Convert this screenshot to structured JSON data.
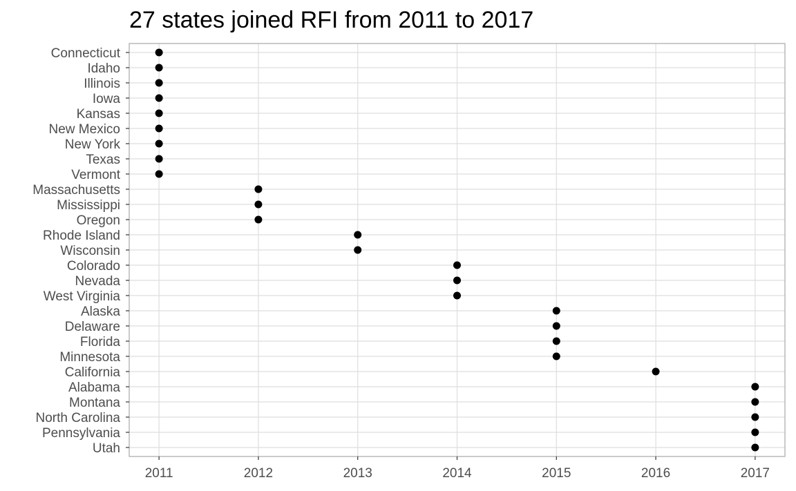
{
  "chart_data": {
    "type": "scatter",
    "title": "27 states joined RFI from 2011 to 2017",
    "xlabel": "",
    "ylabel": "",
    "x_ticks": [
      2011,
      2012,
      2013,
      2014,
      2015,
      2016,
      2017
    ],
    "xlim": [
      2010.7,
      2017.3
    ],
    "grid": true,
    "legend": "none",
    "point_color": "#000000",
    "categories": [
      "Connecticut",
      "Idaho",
      "Illinois",
      "Iowa",
      "Kansas",
      "New Mexico",
      "New York",
      "Texas",
      "Vermont",
      "Massachusetts",
      "Mississippi",
      "Oregon",
      "Rhode Island",
      "Wisconsin",
      "Colorado",
      "Nevada",
      "West Virginia",
      "Alaska",
      "Delaware",
      "Florida",
      "Minnesota",
      "California",
      "Alabama",
      "Montana",
      "North Carolina",
      "Pennsylvania",
      "Utah"
    ],
    "values": [
      2011,
      2011,
      2011,
      2011,
      2011,
      2011,
      2011,
      2011,
      2011,
      2012,
      2012,
      2012,
      2013,
      2013,
      2014,
      2014,
      2014,
      2015,
      2015,
      2015,
      2015,
      2016,
      2017,
      2017,
      2017,
      2017,
      2017
    ]
  }
}
